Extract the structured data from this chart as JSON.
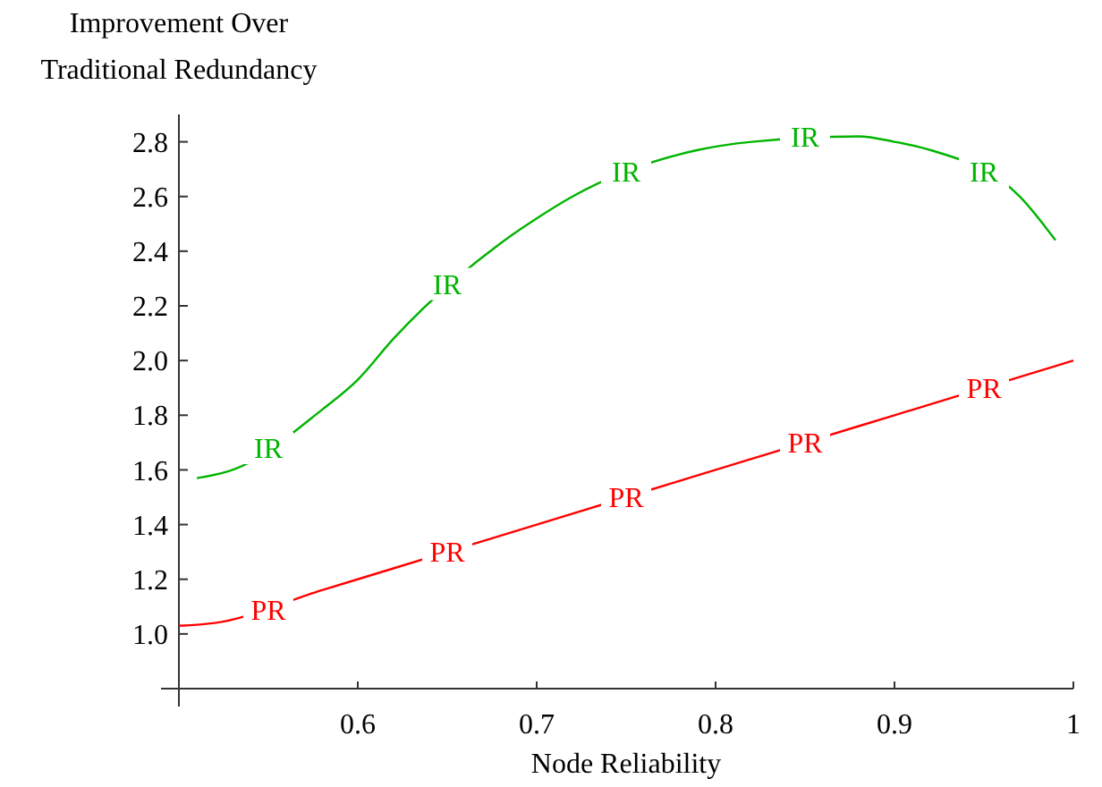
{
  "chart_data": {
    "type": "line",
    "xlabel": "Node Reliability",
    "ylabel": "Improvement Over\nTraditional Redundancy",
    "xlim": [
      0.5,
      1.0
    ],
    "ylim": [
      0.8,
      2.9
    ],
    "xticks": [
      {
        "value": 0.5,
        "label": null
      },
      0.6,
      0.7,
      0.8,
      0.9,
      {
        "value": 1.0,
        "label": "1"
      }
    ],
    "yticks": [
      {
        "value": 1,
        "label": "1.0"
      },
      1.2,
      1.4,
      1.6,
      1.8,
      {
        "value": 2,
        "label": "2.0"
      },
      2.2,
      2.4,
      2.6,
      2.8
    ],
    "grid": false,
    "marker": "none",
    "line_style": "solid",
    "series": [
      {
        "color": "#00b400",
        "x": [
          0.51,
          0.53,
          0.58,
          0.6,
          0.62,
          0.68,
          0.7,
          0.72,
          0.79,
          0.82,
          0.88,
          0.9,
          0.92,
          0.97,
          0.99
        ],
        "values": [
          1.57,
          1.6,
          1.82,
          1.93,
          2.08,
          2.43,
          2.52,
          2.6,
          2.77,
          2.8,
          2.82,
          2.8,
          2.77,
          2.6,
          2.44
        ]
      },
      {
        "color": "#ff0000",
        "x": [
          0.5,
          0.52,
          0.58,
          0.62,
          0.68,
          0.72,
          0.78,
          0.82,
          0.88,
          0.92,
          0.98,
          1.0
        ],
        "values": [
          1.03,
          1.04,
          1.16,
          1.24,
          1.36,
          1.44,
          1.56,
          1.64,
          1.76,
          1.84,
          1.96,
          2.0
        ]
      }
    ],
    "annotations": [
      {
        "text": "IR",
        "x": 0.55,
        "y": 1.68
      },
      {
        "text": "IR",
        "x": 0.65,
        "y": 2.28
      },
      {
        "text": "IR",
        "x": 0.75,
        "y": 2.69
      },
      {
        "text": "IR",
        "x": 0.85,
        "y": 2.82
      },
      {
        "text": "IR",
        "x": 0.95,
        "y": 2.69
      },
      {
        "text": "PR",
        "x": 0.55,
        "y": 1.09
      },
      {
        "text": "PR",
        "x": 0.65,
        "y": 1.3
      },
      {
        "text": "PR",
        "x": 0.75,
        "y": 1.5
      },
      {
        "text": "PR",
        "x": 0.85,
        "y": 1.7
      },
      {
        "text": "PR",
        "x": 0.95,
        "y": 1.9
      }
    ]
  }
}
